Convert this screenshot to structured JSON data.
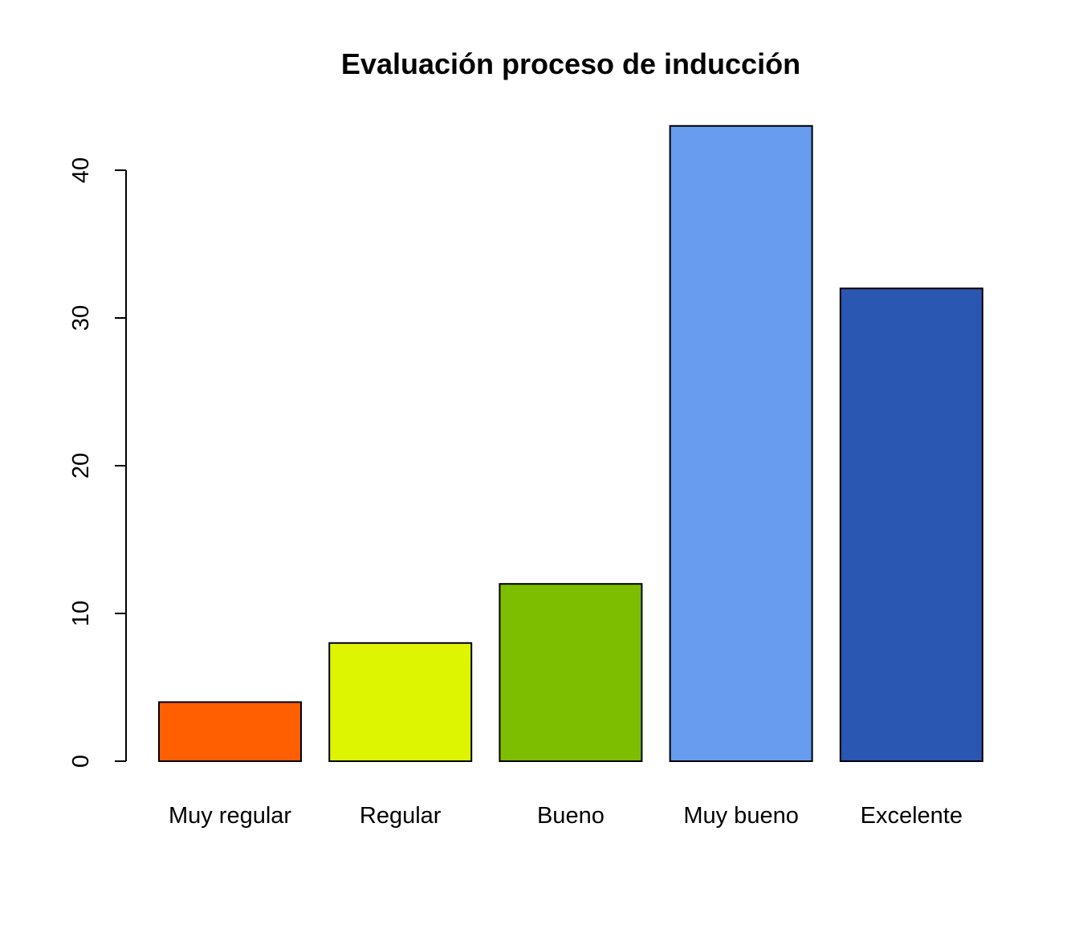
{
  "chart_data": {
    "type": "bar",
    "title": "Evaluación proceso de inducción",
    "xlabel": "",
    "ylabel": "",
    "categories": [
      "Muy regular",
      "Regular",
      "Bueno",
      "Muy bueno",
      "Excelente"
    ],
    "values": [
      4,
      8,
      12,
      43,
      32
    ],
    "colors": [
      "#FF5F00",
      "#DDF500",
      "#7DBE00",
      "#679CEE",
      "#2A57B2"
    ],
    "ylim": [
      0,
      43
    ],
    "yticks": [
      0,
      10,
      20,
      30,
      40
    ],
    "grid": false,
    "legend": "none"
  }
}
